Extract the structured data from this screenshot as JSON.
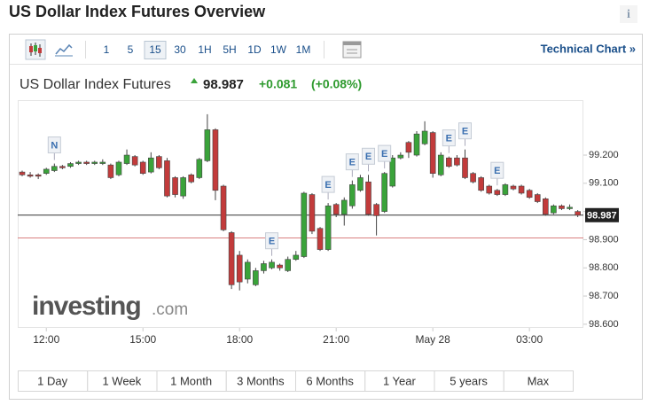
{
  "header": {
    "title": "US Dollar Index Futures Overview",
    "info": "i"
  },
  "toolbar": {
    "intervals": [
      "1",
      "5",
      "15",
      "30",
      "1H",
      "5H",
      "1D",
      "1W",
      "1M"
    ],
    "selected_index": 2,
    "technical_link": "Technical Chart »"
  },
  "instrument": {
    "name": "US Dollar Index Futures",
    "price": "98.987",
    "change": "+0.081",
    "change_pct": "(+0.08%)"
  },
  "chart_data": {
    "type": "candlestick",
    "open": [
      99.14,
      99.13,
      99.13,
      99.135,
      99.145,
      99.16,
      99.16,
      99.17,
      99.175,
      99.17,
      99.17,
      99.165,
      99.13,
      99.17,
      99.195,
      99.175,
      99.14,
      99.195,
      99.18,
      99.12,
      99.055,
      99.13,
      99.12,
      99.18,
      99.29,
      99.09,
      98.925,
      98.845,
      98.76,
      98.74,
      98.79,
      98.8,
      98.81,
      98.79,
      98.83,
      98.84,
      99.06,
      98.94,
      98.865,
      99.025,
      98.99,
      99.02,
      99.075,
      99.105,
      99.025,
      99.0,
      99.09,
      99.19,
      99.245,
      99.2,
      99.24,
      99.28,
      99.13,
      99.19,
      99.19,
      99.19,
      99.135,
      99.12,
      99.09,
      99.075,
      99.06,
      99.09,
      99.09,
      99.075,
      99.06,
      99.045,
      98.995,
      99.02,
      99.01,
      99.0
    ],
    "high": [
      99.145,
      99.14,
      99.135,
      99.155,
      99.17,
      99.165,
      99.175,
      99.18,
      99.18,
      99.18,
      99.185,
      99.17,
      99.18,
      99.22,
      99.2,
      99.18,
      99.21,
      99.2,
      99.19,
      99.125,
      99.125,
      99.135,
      99.19,
      99.345,
      99.295,
      99.095,
      98.93,
      98.86,
      98.83,
      98.8,
      98.825,
      98.83,
      98.815,
      98.84,
      98.86,
      99.07,
      99.065,
      98.945,
      99.03,
      99.03,
      99.05,
      99.11,
      99.13,
      99.13,
      99.03,
      99.14,
      99.2,
      99.21,
      99.25,
      99.285,
      99.32,
      99.285,
      99.21,
      99.195,
      99.2,
      99.22,
      99.14,
      99.125,
      99.095,
      99.08,
      99.1,
      99.095,
      99.095,
      99.08,
      99.065,
      99.05,
      99.025,
      99.025,
      99.025,
      99.005
    ],
    "low": [
      99.125,
      99.12,
      99.115,
      99.13,
      99.14,
      99.15,
      99.155,
      99.165,
      99.165,
      99.165,
      99.165,
      99.115,
      99.125,
      99.165,
      99.16,
      99.13,
      99.135,
      99.15,
      99.05,
      99.05,
      99.045,
      99.1,
      99.115,
      99.175,
      99.04,
      98.93,
      98.725,
      98.72,
      98.745,
      98.735,
      98.78,
      98.795,
      98.79,
      98.785,
      98.825,
      98.835,
      98.92,
      98.86,
      98.86,
      98.98,
      98.95,
      99.01,
      99.07,
      98.985,
      98.915,
      98.995,
      99.085,
      99.185,
      99.19,
      99.195,
      99.235,
      99.12,
      99.125,
      99.155,
      99.16,
      99.115,
      99.1,
      99.07,
      99.06,
      99.055,
      99.055,
      99.075,
      99.06,
      99.045,
      99.03,
      98.985,
      98.99,
      99.005,
      99.005,
      98.98
    ],
    "close": [
      99.13,
      99.125,
      99.125,
      99.15,
      99.16,
      99.155,
      99.17,
      99.175,
      99.17,
      99.175,
      99.175,
      99.12,
      99.175,
      99.2,
      99.165,
      99.135,
      99.19,
      99.155,
      99.055,
      99.06,
      99.12,
      99.105,
      99.185,
      99.29,
      99.075,
      98.935,
      98.74,
      98.75,
      98.82,
      98.79,
      98.815,
      98.82,
      98.8,
      98.83,
      98.845,
      99.065,
      98.93,
      98.865,
      99.02,
      98.99,
      99.04,
      99.095,
      99.12,
      98.99,
      98.985,
      99.135,
      99.19,
      99.2,
      99.21,
      99.275,
      99.285,
      99.135,
      99.2,
      99.16,
      99.165,
      99.12,
      99.105,
      99.075,
      99.065,
      99.06,
      99.095,
      99.08,
      99.065,
      99.05,
      99.035,
      98.99,
      99.02,
      99.01,
      99.015,
      98.987
    ],
    "up_color": "#3aa33a",
    "down_color": "#c23b3b",
    "xlim": [
      -0.55,
      69.7
    ],
    "xticks": [
      {
        "value": 3,
        "label": "12:00"
      },
      {
        "value": 15,
        "label": "15:00"
      },
      {
        "value": 27,
        "label": "18:00"
      },
      {
        "value": 39,
        "label": "21:00"
      },
      {
        "value": 51,
        "label": "May 28"
      },
      {
        "value": 63,
        "label": "03:00"
      }
    ],
    "ylim": [
      98.587,
      99.395
    ],
    "yticks": [
      {
        "value": 98.6,
        "label": "98.600"
      },
      {
        "value": 98.7,
        "label": "98.700"
      },
      {
        "value": 98.8,
        "label": "98.800"
      },
      {
        "value": 98.9,
        "label": "98.900"
      },
      {
        "value": 99.0,
        "label": "99.000"
      },
      {
        "value": 99.1,
        "label": "99.100"
      },
      {
        "value": 99.2,
        "label": "99.200"
      }
    ],
    "hidden_tick_labels": [
      4
    ],
    "last_price": {
      "value": 98.987,
      "label": "98.987"
    },
    "previous_close": 98.906,
    "events": [
      {
        "index": 4,
        "label": "N"
      },
      {
        "index": 31,
        "label": "E"
      },
      {
        "index": 38,
        "label": "E"
      },
      {
        "index": 41,
        "label": "E"
      },
      {
        "index": 43,
        "label": "E"
      },
      {
        "index": 45,
        "label": "E"
      },
      {
        "index": 53,
        "label": "E"
      },
      {
        "index": 55,
        "label": "E"
      },
      {
        "index": 59,
        "label": "E"
      }
    ],
    "watermark": [
      "investing",
      ".com"
    ]
  },
  "ranges": [
    "1 Day",
    "1 Week",
    "1 Month",
    "3 Months",
    "6 Months",
    "1 Year",
    "5 years",
    "Max"
  ]
}
